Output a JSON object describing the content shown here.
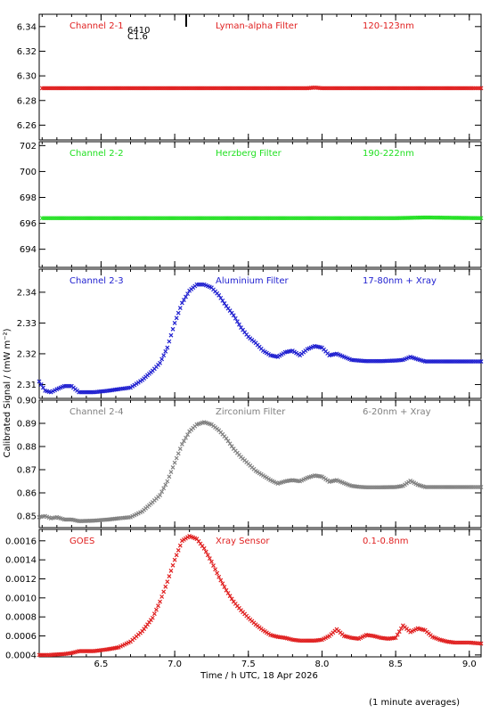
{
  "ylabel": "Calibrated Signal / (mW m⁻²)",
  "xlabel": "Time / h UTC, 18 Apr 2026",
  "footnote": "(1 minute averages)",
  "flare_marker": {
    "time": 7.08,
    "line1": "C1.6",
    "line2": "6410"
  },
  "xlim": [
    6.08,
    9.08
  ],
  "xticks": [
    6.5,
    7.0,
    7.5,
    8.0,
    8.5,
    9.0
  ],
  "xtick_labels": [
    "6.5",
    "7.0",
    "7.5",
    "8.0",
    "8.5",
    "9.0"
  ],
  "panels": [
    {
      "channel": "Channel 2-1",
      "filter": "Lyman-alpha Filter",
      "band": "120-123nm",
      "color": "#e02020",
      "ylim": [
        6.248,
        6.35
      ],
      "yticks": [
        6.26,
        6.28,
        6.3,
        6.32,
        6.34
      ],
      "ytick_labels": [
        "6.26",
        "6.28",
        "6.30",
        "6.32",
        "6.34"
      ]
    },
    {
      "channel": "Channel 2-2",
      "filter": "Herzberg Filter",
      "band": "190-222nm",
      "color": "#20e020",
      "ylim": [
        692.6,
        702.3
      ],
      "yticks": [
        694,
        696,
        698,
        700,
        702
      ],
      "ytick_labels": [
        "694",
        "696",
        "698",
        "700",
        "702"
      ]
    },
    {
      "channel": "Channel 2-3",
      "filter": "Aluminium Filter",
      "band": "17-80nm + Xray",
      "color": "#2020d0",
      "ylim": [
        2.3055,
        2.3475
      ],
      "yticks": [
        2.31,
        2.32,
        2.33,
        2.34
      ],
      "ytick_labels": [
        "2.31",
        "2.32",
        "2.33",
        "2.34"
      ]
    },
    {
      "channel": "Channel 2-4",
      "filter": "Zirconium Filter",
      "band": "6-20nm + Xray",
      "color": "#808080",
      "ylim": [
        0.845,
        0.9
      ],
      "yticks": [
        0.85,
        0.86,
        0.87,
        0.88,
        0.89,
        0.9
      ],
      "ytick_labels": [
        "0.85",
        "0.86",
        "0.87",
        "0.88",
        "0.89",
        "0.90"
      ]
    },
    {
      "channel": "GOES",
      "filter": "Xray Sensor",
      "band": "0.1-0.8nm",
      "color": "#e02020",
      "ylim": [
        0.00038,
        0.00172
      ],
      "yticks": [
        0.0004,
        0.0006,
        0.0008,
        0.001,
        0.0012,
        0.0014,
        0.0016
      ],
      "ytick_labels": [
        "0.0004",
        "0.0006",
        "0.0008",
        "0.0010",
        "0.0012",
        "0.0014",
        "0.0016"
      ]
    }
  ],
  "chart_data": [
    {
      "type": "scatter",
      "title": "Channel 2-1 Lyman-alpha Filter 120-123nm",
      "xlim": [
        6.08,
        9.08
      ],
      "ylim": [
        6.248,
        6.35
      ],
      "series": [
        {
          "x": [
            6.1,
            6.5,
            7.0,
            7.5,
            7.9,
            7.95,
            8.0,
            8.5,
            9.0,
            9.08
          ],
          "y": [
            6.29,
            6.29,
            6.29,
            6.29,
            6.29,
            6.2905,
            6.29,
            6.29,
            6.29,
            6.29
          ]
        }
      ]
    },
    {
      "type": "scatter",
      "title": "Channel 2-2 Herzberg Filter 190-222nm",
      "xlim": [
        6.08,
        9.08
      ],
      "ylim": [
        692.6,
        702.3
      ],
      "series": [
        {
          "x": [
            6.1,
            6.5,
            7.0,
            7.5,
            8.0,
            8.5,
            8.7,
            9.08
          ],
          "y": [
            696.4,
            696.4,
            696.4,
            696.4,
            696.4,
            696.4,
            696.45,
            696.4
          ]
        }
      ]
    },
    {
      "type": "scatter",
      "title": "Channel 2-3 Aluminium Filter 17-80nm + Xray",
      "xlim": [
        6.08,
        9.08
      ],
      "ylim": [
        2.3055,
        2.3475
      ],
      "series": [
        {
          "x": [
            6.08,
            6.12,
            6.16,
            6.2,
            6.25,
            6.3,
            6.35,
            6.45,
            6.55,
            6.62,
            6.7,
            6.78,
            6.85,
            6.9,
            6.95,
            7.0,
            7.05,
            7.1,
            7.15,
            7.2,
            7.25,
            7.3,
            7.35,
            7.4,
            7.45,
            7.5,
            7.55,
            7.6,
            7.65,
            7.7,
            7.75,
            7.8,
            7.85,
            7.9,
            7.95,
            8.0,
            8.05,
            8.1,
            8.15,
            8.2,
            8.25,
            8.3,
            8.4,
            8.5,
            8.55,
            8.6,
            8.65,
            8.7,
            8.8,
            8.9,
            9.0,
            9.08
          ],
          "y": [
            2.311,
            2.308,
            2.3075,
            2.3085,
            2.3095,
            2.3095,
            2.3075,
            2.3075,
            2.308,
            2.3085,
            2.309,
            2.3115,
            2.3145,
            2.317,
            2.322,
            2.33,
            2.3365,
            2.3405,
            2.3425,
            2.3425,
            2.3415,
            2.339,
            2.3355,
            2.3325,
            2.3285,
            2.3255,
            2.3235,
            2.321,
            2.3195,
            2.319,
            2.3205,
            2.321,
            2.3195,
            2.3215,
            2.3225,
            2.322,
            2.3195,
            2.32,
            2.319,
            2.318,
            2.3178,
            2.3176,
            2.3176,
            2.3178,
            2.318,
            2.319,
            2.3182,
            2.3175,
            2.3175,
            2.3175,
            2.3175,
            2.3175
          ]
        }
      ]
    },
    {
      "type": "scatter",
      "title": "Channel 2-4 Zirconium Filter 6-20nm + Xray",
      "xlim": [
        6.08,
        9.08
      ],
      "ylim": [
        0.845,
        0.9
      ],
      "series": [
        {
          "x": [
            6.08,
            6.12,
            6.16,
            6.2,
            6.25,
            6.3,
            6.35,
            6.45,
            6.55,
            6.62,
            6.7,
            6.78,
            6.85,
            6.9,
            6.95,
            7.0,
            7.05,
            7.1,
            7.15,
            7.2,
            7.25,
            7.3,
            7.35,
            7.4,
            7.45,
            7.5,
            7.55,
            7.6,
            7.65,
            7.7,
            7.75,
            7.8,
            7.85,
            7.9,
            7.95,
            8.0,
            8.05,
            8.1,
            8.15,
            8.2,
            8.25,
            8.3,
            8.4,
            8.5,
            8.55,
            8.6,
            8.65,
            8.7,
            8.8,
            8.9,
            9.0,
            9.08
          ],
          "y": [
            0.8495,
            0.85,
            0.849,
            0.8495,
            0.8485,
            0.8485,
            0.8478,
            0.848,
            0.8485,
            0.849,
            0.8495,
            0.852,
            0.856,
            0.859,
            0.865,
            0.873,
            0.881,
            0.8865,
            0.8895,
            0.8905,
            0.8895,
            0.887,
            0.8835,
            0.879,
            0.8755,
            0.8725,
            0.8695,
            0.8675,
            0.8655,
            0.864,
            0.865,
            0.8655,
            0.865,
            0.8665,
            0.8675,
            0.867,
            0.8648,
            0.8655,
            0.8642,
            0.863,
            0.8626,
            0.8624,
            0.8624,
            0.8625,
            0.863,
            0.8652,
            0.8635,
            0.8625,
            0.8625,
            0.8625,
            0.8625,
            0.8625
          ]
        }
      ]
    },
    {
      "type": "scatter",
      "title": "GOES Xray Sensor 0.1-0.8nm",
      "xlim": [
        6.08,
        9.08
      ],
      "ylim": [
        0.00038,
        0.00172
      ],
      "series": [
        {
          "x": [
            6.08,
            6.15,
            6.25,
            6.3,
            6.35,
            6.4,
            6.45,
            6.55,
            6.62,
            6.7,
            6.78,
            6.85,
            6.9,
            6.95,
            7.0,
            7.05,
            7.1,
            7.15,
            7.2,
            7.25,
            7.3,
            7.35,
            7.4,
            7.45,
            7.5,
            7.55,
            7.6,
            7.65,
            7.7,
            7.75,
            7.8,
            7.85,
            7.9,
            7.95,
            8.0,
            8.05,
            8.1,
            8.15,
            8.2,
            8.25,
            8.3,
            8.35,
            8.4,
            8.45,
            8.5,
            8.55,
            8.6,
            8.65,
            8.7,
            8.75,
            8.8,
            8.85,
            8.9,
            9.0,
            9.08
          ],
          "y": [
            0.0004,
            0.0004,
            0.00041,
            0.00042,
            0.00044,
            0.00044,
            0.00044,
            0.00046,
            0.00048,
            0.00054,
            0.00065,
            0.00079,
            0.00096,
            0.00117,
            0.0014,
            0.0016,
            0.00165,
            0.00162,
            0.00152,
            0.00138,
            0.00122,
            0.00108,
            0.00096,
            0.00087,
            0.00079,
            0.00072,
            0.00066,
            0.00061,
            0.00059,
            0.00058,
            0.00056,
            0.00055,
            0.00055,
            0.00055,
            0.00056,
            0.0006,
            0.00067,
            0.0006,
            0.00058,
            0.00057,
            0.00061,
            0.0006,
            0.00058,
            0.00057,
            0.00058,
            0.00071,
            0.00064,
            0.00068,
            0.00066,
            0.00059,
            0.00056,
            0.00054,
            0.00053,
            0.00053,
            0.00052
          ]
        }
      ]
    }
  ]
}
